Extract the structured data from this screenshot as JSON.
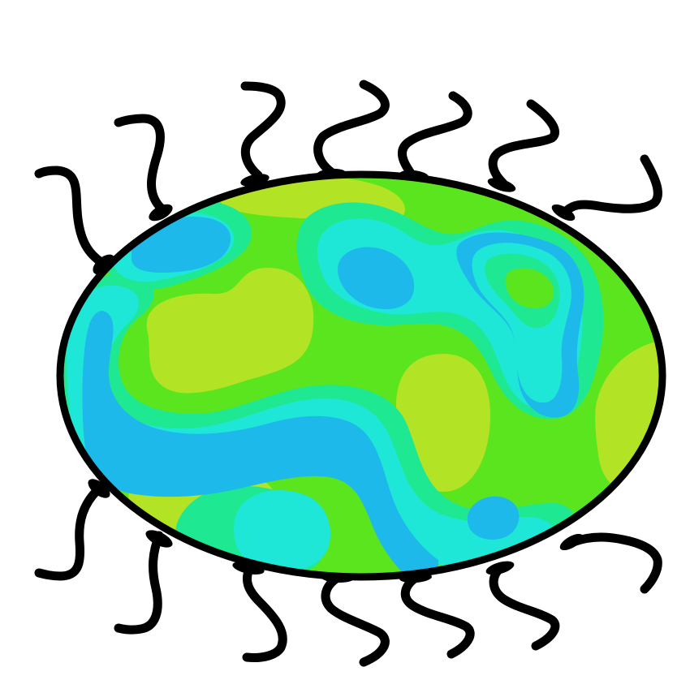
{
  "illustration": {
    "subject": "germ-cell-icon",
    "colors": {
      "outline": "#000000",
      "background": "#ffffff",
      "yellow_green": "#b3e325",
      "green": "#5ae51f",
      "mint": "#1fe893",
      "aqua": "#1ee7d8",
      "blue": "#1db9ea"
    }
  }
}
